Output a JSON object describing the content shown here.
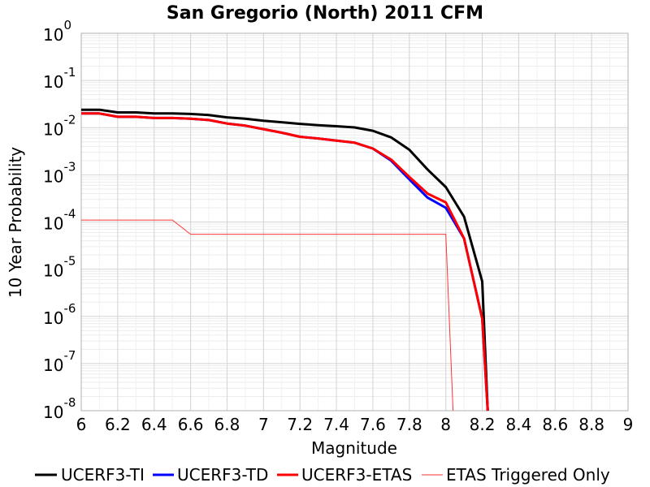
{
  "chart_data": {
    "type": "line",
    "title": "San Gregorio (North) 2011 CFM",
    "xlabel": "Magnitude",
    "ylabel": "10 Year Probability",
    "xlim": [
      6,
      9
    ],
    "ylim": [
      1e-08,
      1
    ],
    "yscale": "log",
    "grid": true,
    "legend_position": "bottom",
    "x_ticks": [
      "6",
      "6.2",
      "6.4",
      "6.6",
      "6.8",
      "7",
      "7.2",
      "7.4",
      "7.6",
      "7.8",
      "8",
      "8.2",
      "8.4",
      "8.6",
      "8.8",
      "9"
    ],
    "y_ticks": [
      {
        "base": "10",
        "exp": "0"
      },
      {
        "base": "10",
        "exp": "-1"
      },
      {
        "base": "10",
        "exp": "-2"
      },
      {
        "base": "10",
        "exp": "-3"
      },
      {
        "base": "10",
        "exp": "-4"
      },
      {
        "base": "10",
        "exp": "-5"
      },
      {
        "base": "10",
        "exp": "-6"
      },
      {
        "base": "10",
        "exp": "-7"
      },
      {
        "base": "10",
        "exp": "-8"
      }
    ],
    "series": [
      {
        "name": "UCERF3-TI",
        "color": "#000000",
        "style": "thick",
        "x": [
          6.0,
          6.1,
          6.2,
          6.3,
          6.4,
          6.5,
          6.6,
          6.7,
          6.8,
          6.9,
          7.0,
          7.1,
          7.2,
          7.3,
          7.4,
          7.5,
          7.6,
          7.7,
          7.8,
          7.9,
          8.0,
          8.1,
          8.2,
          8.23
        ],
        "y": [
          0.024,
          0.024,
          0.021,
          0.021,
          0.02,
          0.02,
          0.0195,
          0.0185,
          0.0165,
          0.0155,
          0.014,
          0.013,
          0.012,
          0.0113,
          0.0107,
          0.0101,
          0.0086,
          0.0062,
          0.0034,
          0.0013,
          0.00055,
          0.00013,
          5.5e-06,
          1e-08
        ]
      },
      {
        "name": "UCERF3-TD",
        "color": "#0000ff",
        "style": "thick",
        "x": [
          6.0,
          6.1,
          6.2,
          6.3,
          6.4,
          6.5,
          6.6,
          6.7,
          6.8,
          6.9,
          7.0,
          7.1,
          7.2,
          7.3,
          7.4,
          7.5,
          7.6,
          7.7,
          7.8,
          7.9,
          8.0,
          8.1,
          8.2,
          8.23
        ],
        "y": [
          0.02,
          0.02,
          0.017,
          0.017,
          0.016,
          0.016,
          0.0155,
          0.0145,
          0.0122,
          0.011,
          0.0093,
          0.0078,
          0.0064,
          0.0059,
          0.0053,
          0.0048,
          0.0036,
          0.002,
          0.0008,
          0.00033,
          0.0002,
          4.5e-05,
          9e-07,
          1e-08
        ]
      },
      {
        "name": "UCERF3-ETAS",
        "color": "#ff0000",
        "style": "thick",
        "x": [
          6.0,
          6.1,
          6.2,
          6.3,
          6.4,
          6.5,
          6.6,
          6.7,
          6.8,
          6.9,
          7.0,
          7.1,
          7.2,
          7.3,
          7.4,
          7.5,
          7.6,
          7.7,
          7.8,
          7.9,
          8.0,
          8.1,
          8.2,
          8.23
        ],
        "y": [
          0.02,
          0.02,
          0.017,
          0.017,
          0.016,
          0.016,
          0.0155,
          0.0145,
          0.0122,
          0.011,
          0.0093,
          0.0078,
          0.0064,
          0.0059,
          0.0053,
          0.0048,
          0.0036,
          0.0021,
          0.0009,
          0.0004,
          0.00026,
          4.5e-05,
          9e-07,
          1e-08
        ]
      },
      {
        "name": "ETAS Triggered Only",
        "color": "#ff3333",
        "style": "thin",
        "x": [
          6.0,
          6.5,
          6.6,
          8.0,
          8.04
        ],
        "y": [
          0.00011,
          0.00011,
          5.5e-05,
          5.5e-05,
          1e-08
        ]
      }
    ]
  }
}
